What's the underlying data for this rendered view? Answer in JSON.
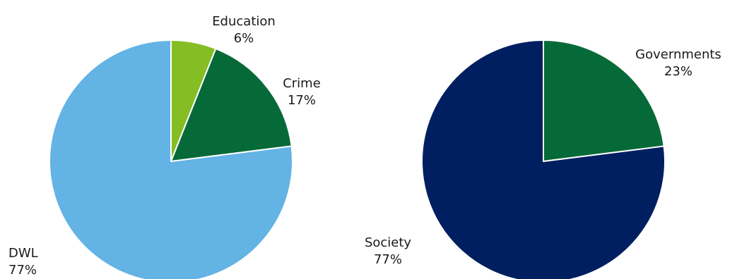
{
  "chart_data": [
    {
      "type": "pie",
      "start_angle": "12 o'clock, clockwise",
      "slices": [
        {
          "label": "Education",
          "value": 6,
          "display": "6%",
          "color": "#84bd24"
        },
        {
          "label": "Crime",
          "value": 17,
          "display": "17%",
          "color": "#066a38"
        },
        {
          "label": "DWL",
          "value": 77,
          "display": "77%",
          "color": "#63b3e4"
        }
      ]
    },
    {
      "type": "pie",
      "start_angle": "12 o'clock, clockwise",
      "slices": [
        {
          "label": "Governments",
          "value": 23,
          "display": "23%",
          "color": "#066a38"
        },
        {
          "label": "Society",
          "value": 77,
          "display": "77%",
          "color": "#001f60"
        }
      ]
    }
  ]
}
